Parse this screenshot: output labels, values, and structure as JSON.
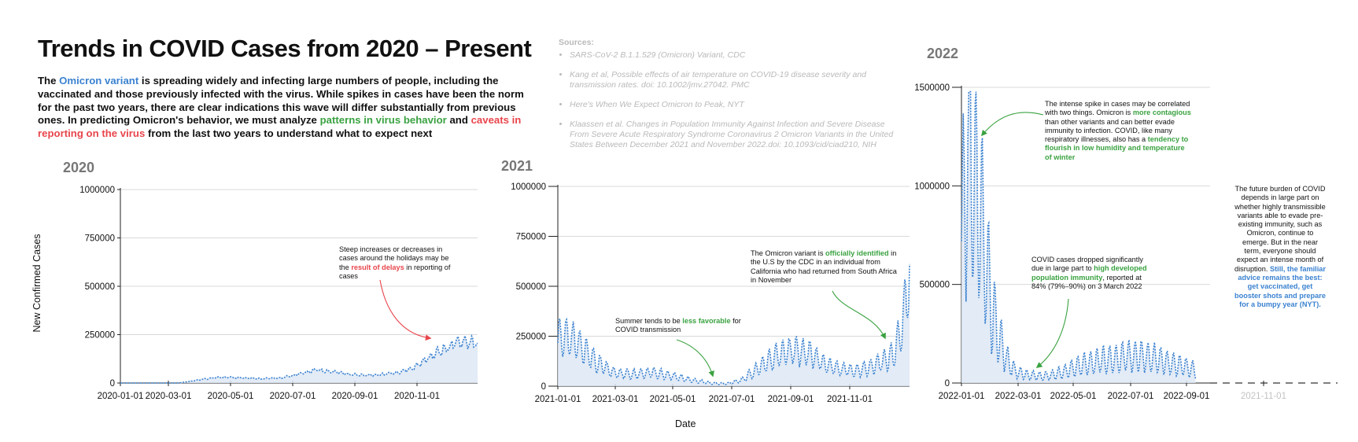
{
  "title": "Trends in COVID Cases from 2020 – Present",
  "intro": {
    "p1": "The ",
    "omicron": "Omicron variant",
    "p2": " is spreading widely and infecting large numbers of people, including the vaccinated and those previously infected with the virus. While spikes in cases have been the norm for the past two years, there are clear indications this wave will differ substantially from previous ones. In predicting Omicron's behavior, we must analyze ",
    "patterns": "patterns in virus behavior",
    "p3": " and ",
    "caveats": "caveats in reporting on the virus",
    "p4": " from the last two years to understand what to expect next"
  },
  "sources": {
    "heading": "Sources:",
    "items": [
      "SARS-CoV-2 B.1.1.529 (Omicron) Variant, CDC",
      "Kang et al, Possible effects of air temperature on COVID-19 disease severity and transmission rates. doi: 10.1002/jmv.27042. PMC",
      "Here's When We Expect Omicron to Peak, NYT",
      "Klaassen et al. Changes in Population Immunity Against Infection and Severe Disease From Severe Acute Respiratory Syndrome Coronavirus 2 Omicron Variants in the United States Between December 2021 and November 2022.doi: 10.1093/cid/ciad210, NIH"
    ]
  },
  "axis": {
    "ylabel": "New Confirmed Cases",
    "xlabel": "Date"
  },
  "years": {
    "y2020": "2020",
    "y2021": "2021",
    "y2022": "2022"
  },
  "notes": {
    "n2020": {
      "a": "Steep increases or decreases in cases around the holidays may be the ",
      "b": "result of delays",
      "c": " in reporting of cases"
    },
    "summer": {
      "a": "Summer tends to be ",
      "b": "less favorable",
      "c": " for COVID transmission"
    },
    "omicron": {
      "a": "The Omicron variant is ",
      "b": "officially identified",
      "c": " in the U.S by the CDC in an individual from California who had returned from South Africa in November"
    },
    "spike": {
      "a": "The intense spike in cases may be correlated with two things. Omicron is ",
      "b": "more contagious",
      "c": " than other variants and can better evade immunity to infection. COVID, like many respiratory illnesses, also has a ",
      "d": "tendency to flourish in low humidity and temperature of winter"
    },
    "dropped": {
      "a": "COVID cases dropped significantly due in large part to ",
      "b": "high developed population immunity",
      "c": ", reported at 84% (79%–90%) on 3 March 2022"
    },
    "future": {
      "a": "The future burden of COVID depends in large part on whether highly transmissible variants able to evade pre-existing immunity, such as Omicron, continue to emerge. But in the near term, everyone should expect an intense month of disruption. ",
      "b": "Still, the familiar advice remains the best: get vaccinated, get booster shots and prepare for a bumpy year (NYT)."
    }
  },
  "colors": {
    "series": "#3b82d0",
    "fill": "#dde8f4",
    "grid": "#d9d9d9",
    "arrow_green": "#3aa241",
    "arrow_red": "#e8464c"
  },
  "chart_data": [
    {
      "type": "area",
      "title": "2020",
      "ylabel": "New Confirmed Cases",
      "ylim": [
        0,
        1000000
      ],
      "yticks": [
        0,
        250000,
        500000,
        750000,
        1000000
      ],
      "xticks": [
        "2020-01-01",
        "2020-03-01",
        "2020-05-01",
        "2020-07-01",
        "2020-09-01",
        "2020-11-01"
      ],
      "series": [
        {
          "x": [
            "2020-01-01",
            "2020-02-15",
            "2020-03-01",
            "2020-03-20",
            "2020-04-10",
            "2020-05-01",
            "2020-05-25",
            "2020-06-15",
            "2020-07-05",
            "2020-07-20",
            "2020-08-10",
            "2020-09-01",
            "2020-09-20",
            "2020-10-10",
            "2020-10-25",
            "2020-11-05",
            "2020-11-20",
            "2020-12-01",
            "2020-12-15",
            "2020-12-31"
          ],
          "values": [
            0,
            0,
            0,
            15000,
            30000,
            28000,
            22000,
            28000,
            50000,
            68000,
            55000,
            40000,
            42000,
            55000,
            75000,
            110000,
            160000,
            185000,
            220000,
            200000
          ]
        }
      ]
    },
    {
      "type": "area",
      "title": "2021",
      "xlabel": "Date",
      "ylim": [
        0,
        1000000
      ],
      "yticks": [
        0,
        250000,
        500000,
        750000,
        1000000
      ],
      "xticks": [
        "2021-01-01",
        "2021-03-01",
        "2021-05-01",
        "2021-07-01",
        "2021-09-01",
        "2021-11-01"
      ],
      "series": [
        {
          "x": [
            "2021-01-01",
            "2021-01-10",
            "2021-01-25",
            "2021-02-10",
            "2021-03-01",
            "2021-03-20",
            "2021-04-10",
            "2021-05-01",
            "2021-05-20",
            "2021-06-10",
            "2021-06-25",
            "2021-07-10",
            "2021-07-25",
            "2021-08-10",
            "2021-08-25",
            "2021-09-05",
            "2021-09-20",
            "2021-10-05",
            "2021-10-20",
            "2021-11-05",
            "2021-11-20",
            "2021-12-05",
            "2021-12-15",
            "2021-12-25",
            "2021-12-31"
          ],
          "values": [
            230000,
            250000,
            200000,
            120000,
            65000,
            60000,
            68000,
            50000,
            30000,
            15000,
            13000,
            30000,
            80000,
            140000,
            170000,
            180000,
            160000,
            110000,
            85000,
            80000,
            95000,
            130000,
            160000,
            350000,
            580000
          ]
        }
      ]
    },
    {
      "type": "area",
      "title": "2022",
      "ylim": [
        0,
        1500000
      ],
      "yticks": [
        0,
        500000,
        1000000,
        1500000
      ],
      "xticks": [
        "2022-01-01",
        "2022-03-01",
        "2022-05-01",
        "2022-07-01",
        "2022-09-01",
        "2021-11-01"
      ],
      "series": [
        {
          "x": [
            "2022-01-01",
            "2022-01-05",
            "2022-01-10",
            "2022-01-15",
            "2022-01-20",
            "2022-01-25",
            "2022-02-01",
            "2022-02-10",
            "2022-02-20",
            "2022-03-01",
            "2022-03-15",
            "2022-04-01",
            "2022-04-15",
            "2022-05-01",
            "2022-05-15",
            "2022-06-01",
            "2022-06-15",
            "2022-07-01",
            "2022-07-15",
            "2022-08-01",
            "2022-08-15",
            "2022-09-01",
            "2022-09-15"
          ],
          "values": [
            700000,
            950000,
            1350000,
            1000000,
            900000,
            750000,
            450000,
            250000,
            120000,
            60000,
            40000,
            35000,
            45000,
            70000,
            95000,
            115000,
            120000,
            135000,
            140000,
            125000,
            105000,
            85000,
            65000
          ]
        }
      ]
    }
  ]
}
